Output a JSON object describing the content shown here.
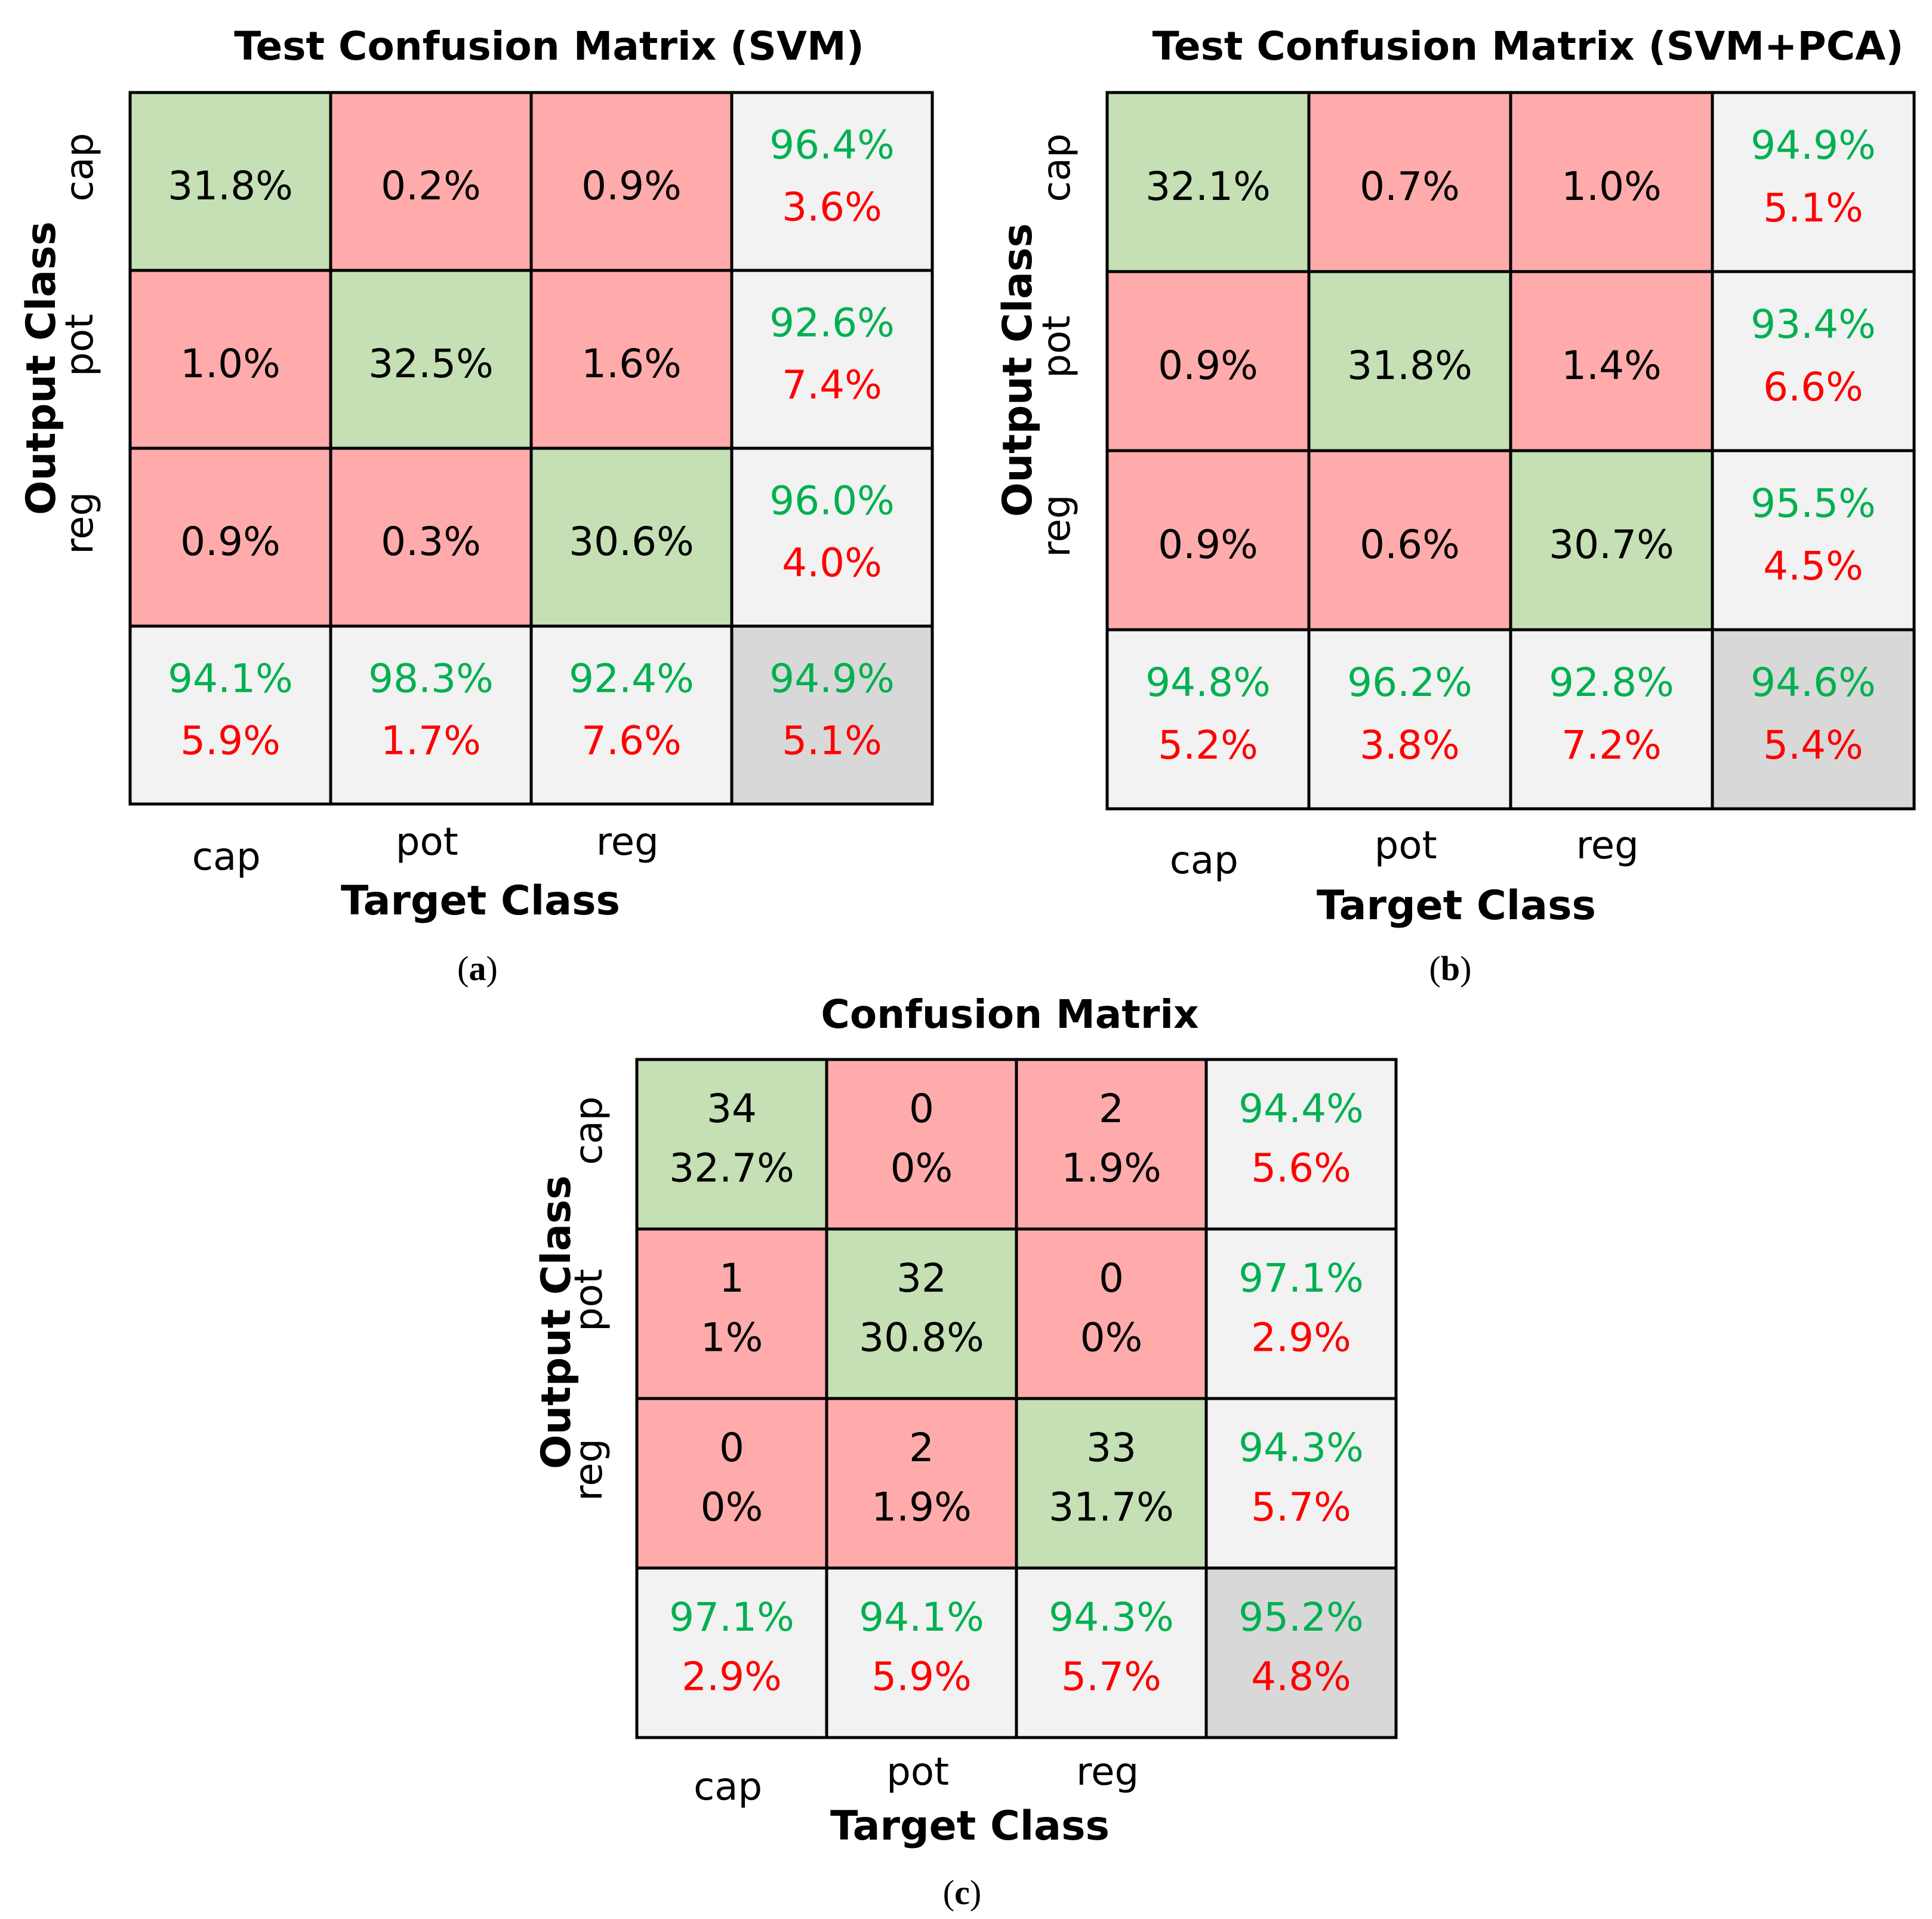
{
  "colors": {
    "diagonal": "#c5e0b4",
    "off_diagonal": "#ffabab",
    "summary": "#f2f2f2",
    "overall": "#d8d8d8",
    "good_text": "#00b050",
    "bad_text": "#ff0000",
    "plain_text": "#000000",
    "grid": "#000000"
  },
  "chart_data": [
    {
      "type": "table",
      "title": "Test Confusion Matrix (SVM)",
      "xlabel": "Target Class",
      "ylabel": "Output Class",
      "caption": {
        "open": "(",
        "letter": "a",
        "close": ")"
      },
      "x_categories": [
        "cap",
        "pot",
        "reg"
      ],
      "y_categories": [
        "cap",
        "pot",
        "reg"
      ],
      "cells": [
        [
          [
            "31.8%"
          ],
          [
            "0.2%"
          ],
          [
            "0.9%"
          ]
        ],
        [
          [
            "1.0%"
          ],
          [
            "32.5%"
          ],
          [
            "1.6%"
          ]
        ],
        [
          [
            "0.9%"
          ],
          [
            "0.3%"
          ],
          [
            "30.6%"
          ]
        ]
      ],
      "row_summary": [
        [
          "96.4%",
          "3.6%"
        ],
        [
          "92.6%",
          "7.4%"
        ],
        [
          "96.0%",
          "4.0%"
        ]
      ],
      "col_summary": [
        [
          "94.1%",
          "5.9%"
        ],
        [
          "98.3%",
          "1.7%"
        ],
        [
          "92.4%",
          "7.6%"
        ]
      ],
      "overall": [
        "94.9%",
        "5.1%"
      ]
    },
    {
      "type": "table",
      "title": "Test Confusion Matrix (SVM+PCA)",
      "xlabel": "Target Class",
      "ylabel": "Output Class",
      "caption": {
        "open": "(",
        "letter": "b",
        "close": ")"
      },
      "x_categories": [
        "cap",
        "pot",
        "reg"
      ],
      "y_categories": [
        "cap",
        "pot",
        "reg"
      ],
      "cells": [
        [
          [
            "32.1%"
          ],
          [
            "0.7%"
          ],
          [
            "1.0%"
          ]
        ],
        [
          [
            "0.9%"
          ],
          [
            "31.8%"
          ],
          [
            "1.4%"
          ]
        ],
        [
          [
            "0.9%"
          ],
          [
            "0.6%"
          ],
          [
            "30.7%"
          ]
        ]
      ],
      "row_summary": [
        [
          "94.9%",
          "5.1%"
        ],
        [
          "93.4%",
          "6.6%"
        ],
        [
          "95.5%",
          "4.5%"
        ]
      ],
      "col_summary": [
        [
          "94.8%",
          "5.2%"
        ],
        [
          "96.2%",
          "3.8%"
        ],
        [
          "92.8%",
          "7.2%"
        ]
      ],
      "overall": [
        "94.6%",
        "5.4%"
      ]
    },
    {
      "type": "table",
      "title": "Confusion Matrix",
      "xlabel": "Target Class",
      "ylabel": "Output Class",
      "caption": {
        "open": "(",
        "letter": "c",
        "close": ")"
      },
      "x_categories": [
        "cap",
        "pot",
        "reg"
      ],
      "y_categories": [
        "cap",
        "pot",
        "reg"
      ],
      "cells": [
        [
          [
            "34",
            "32.7%"
          ],
          [
            "0",
            "0%"
          ],
          [
            "2",
            "1.9%"
          ]
        ],
        [
          [
            "1",
            "1%"
          ],
          [
            "32",
            "30.8%"
          ],
          [
            "0",
            "0%"
          ]
        ],
        [
          [
            "0",
            "0%"
          ],
          [
            "2",
            "1.9%"
          ],
          [
            "33",
            "31.7%"
          ]
        ]
      ],
      "row_summary": [
        [
          "94.4%",
          "5.6%"
        ],
        [
          "97.1%",
          "2.9%"
        ],
        [
          "94.3%",
          "5.7%"
        ]
      ],
      "col_summary": [
        [
          "97.1%",
          "2.9%"
        ],
        [
          "94.1%",
          "5.9%"
        ],
        [
          "94.3%",
          "5.7%"
        ]
      ],
      "overall": [
        "95.2%",
        "4.8%"
      ]
    }
  ]
}
